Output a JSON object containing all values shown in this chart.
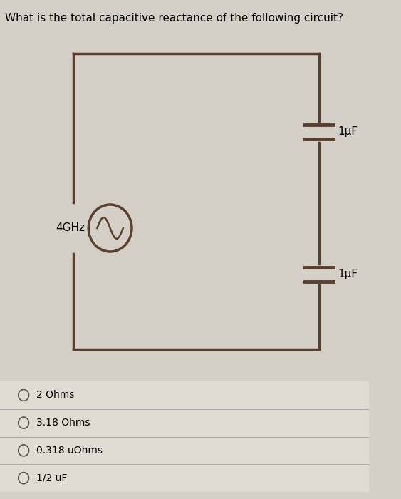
{
  "title": "What is the total capacitive reactance of the following circuit?",
  "title_fontsize": 11,
  "bg_color": "#d4cfc7",
  "source_label": "4GHz",
  "cap1_label": "1μF",
  "cap2_label": "1μF",
  "options": [
    "2 Ohms",
    "3.18 Ohms",
    "0.318 uOhms",
    "1/2 uF"
  ],
  "line_color": "#5a3e2b",
  "line_width": 2.5
}
